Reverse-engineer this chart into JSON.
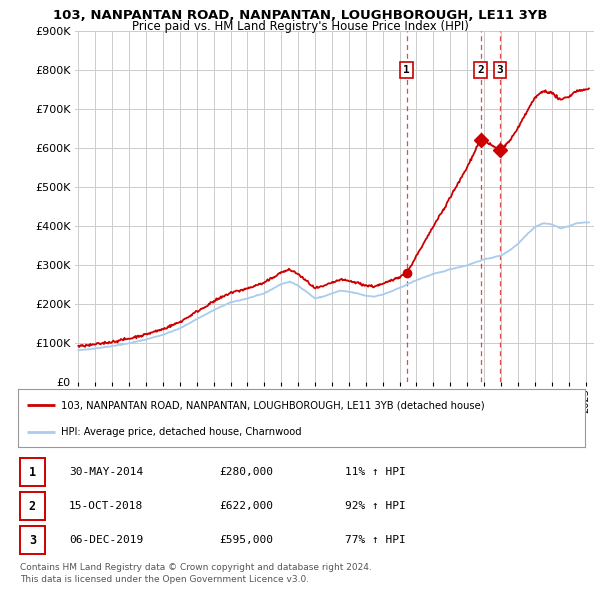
{
  "title1": "103, NANPANTAN ROAD, NANPANTAN, LOUGHBOROUGH, LE11 3YB",
  "title2": "Price paid vs. HM Land Registry's House Price Index (HPI)",
  "legend_red": "103, NANPANTAN ROAD, NANPANTAN, LOUGHBOROUGH, LE11 3YB (detached house)",
  "legend_blue": "HPI: Average price, detached house, Charnwood",
  "sales": [
    {
      "num": 1,
      "date": "30-MAY-2014",
      "price": 280000,
      "hpi_pct": "11% ↑ HPI",
      "year": 2014.41
    },
    {
      "num": 2,
      "date": "15-OCT-2018",
      "price": 622000,
      "hpi_pct": "92% ↑ HPI",
      "year": 2018.79
    },
    {
      "num": 3,
      "date": "06-DEC-2019",
      "price": 595000,
      "hpi_pct": "77% ↑ HPI",
      "year": 2019.93
    }
  ],
  "footnote1": "Contains HM Land Registry data © Crown copyright and database right 2024.",
  "footnote2": "This data is licensed under the Open Government Licence v3.0.",
  "ylim": [
    0,
    900000
  ],
  "xlim_min": 1994.8,
  "xlim_max": 2025.5,
  "red_color": "#cc0000",
  "blue_color": "#aaccee",
  "vline_color": "#cc0000",
  "grid_color": "#cccccc",
  "background_color": "#ffffff"
}
